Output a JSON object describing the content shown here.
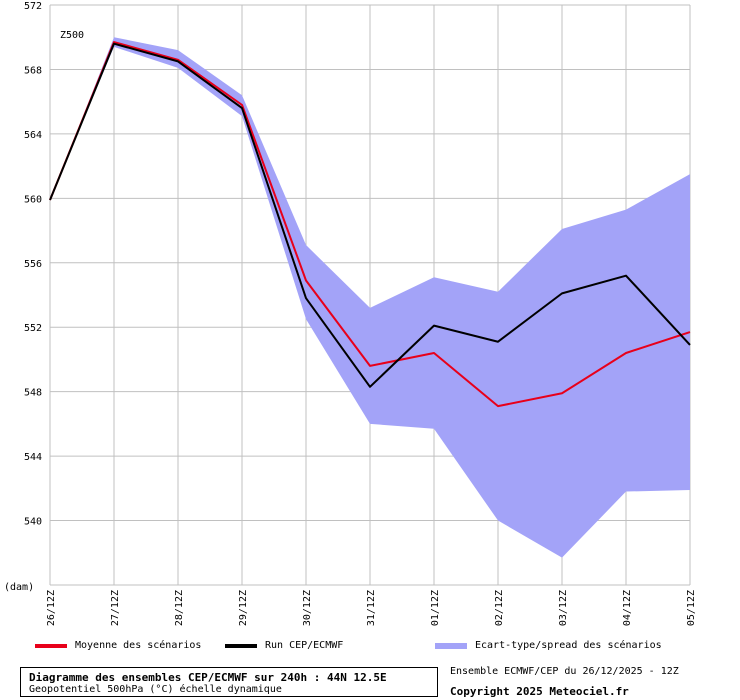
{
  "chart_data": {
    "type": "line",
    "annotation": "Z500",
    "unit_label": "(dam)",
    "categories": [
      "26/12Z",
      "27/12Z",
      "28/12Z",
      "29/12Z",
      "30/12Z",
      "31/12Z",
      "01/12Z",
      "02/12Z",
      "03/12Z",
      "04/12Z",
      "05/12Z"
    ],
    "ylim": [
      536,
      572
    ],
    "yticks": [
      536,
      540,
      544,
      548,
      552,
      556,
      560,
      564,
      568,
      572
    ],
    "grid": true,
    "series": [
      {
        "name": "Moyenne des scénarios",
        "color": "#e8001a",
        "values": [
          559.9,
          569.7,
          568.6,
          565.8,
          554.9,
          549.6,
          550.4,
          547.1,
          547.9,
          550.4,
          551.7
        ]
      },
      {
        "name": "Run CEP/ECMWF",
        "color": "#000000",
        "values": [
          559.9,
          569.6,
          568.5,
          565.6,
          553.8,
          548.3,
          552.1,
          551.1,
          554.1,
          555.2,
          550.9
        ]
      }
    ],
    "band": {
      "name": "Ecart-type/spread des scénarios",
      "color": "#a3a3f8",
      "upper": [
        559.9,
        570.0,
        569.2,
        566.4,
        557.1,
        553.2,
        555.1,
        554.2,
        558.1,
        559.3,
        561.5
      ],
      "lower": [
        559.9,
        569.4,
        568.1,
        565.1,
        552.5,
        546.0,
        545.7,
        540.0,
        537.7,
        541.8,
        541.9
      ]
    }
  },
  "legend": {
    "mean_label": "Moyenne des scénarios",
    "run_label": "Run CEP/ECMWF",
    "spread_label": "Ecart-type/spread des scénarios"
  },
  "info": {
    "title": "Diagramme des ensembles CEP/ECMWF sur 240h : 44N 12.5E",
    "subtitle": "Geopotentiel 500hPa (°C) échelle dynamique",
    "ensemble": "Ensemble ECMWF/CEP du 26/12/2025 - 12Z",
    "copyright": "Copyright 2025 Meteociel.fr"
  }
}
